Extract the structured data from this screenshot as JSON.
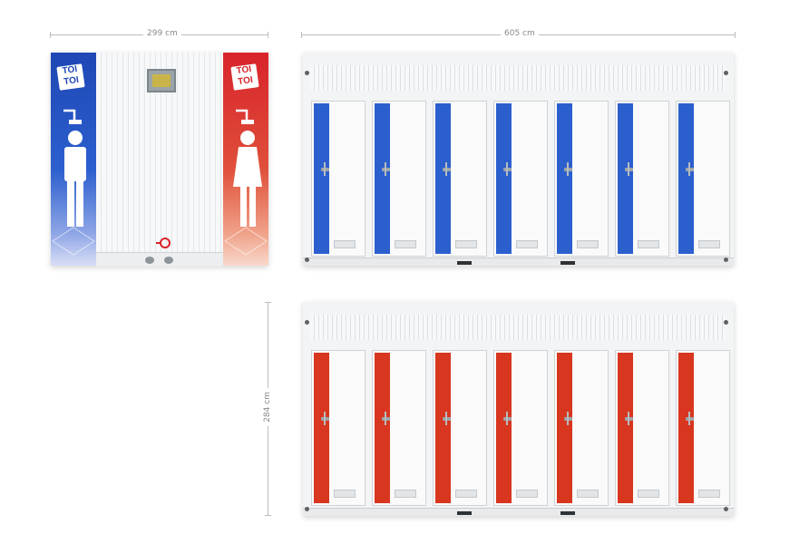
{
  "dimensions": {
    "width_side": "299 cm",
    "length": "605 cm",
    "height": "284 cm"
  },
  "branding": {
    "logo_text_line1": "TOI",
    "logo_text_line2": "TOI"
  },
  "colors": {
    "men_blue": "#2c5fce",
    "women_red": "#d8361f"
  },
  "containers": {
    "top_door_count": 7,
    "bottom_door_count": 7
  }
}
